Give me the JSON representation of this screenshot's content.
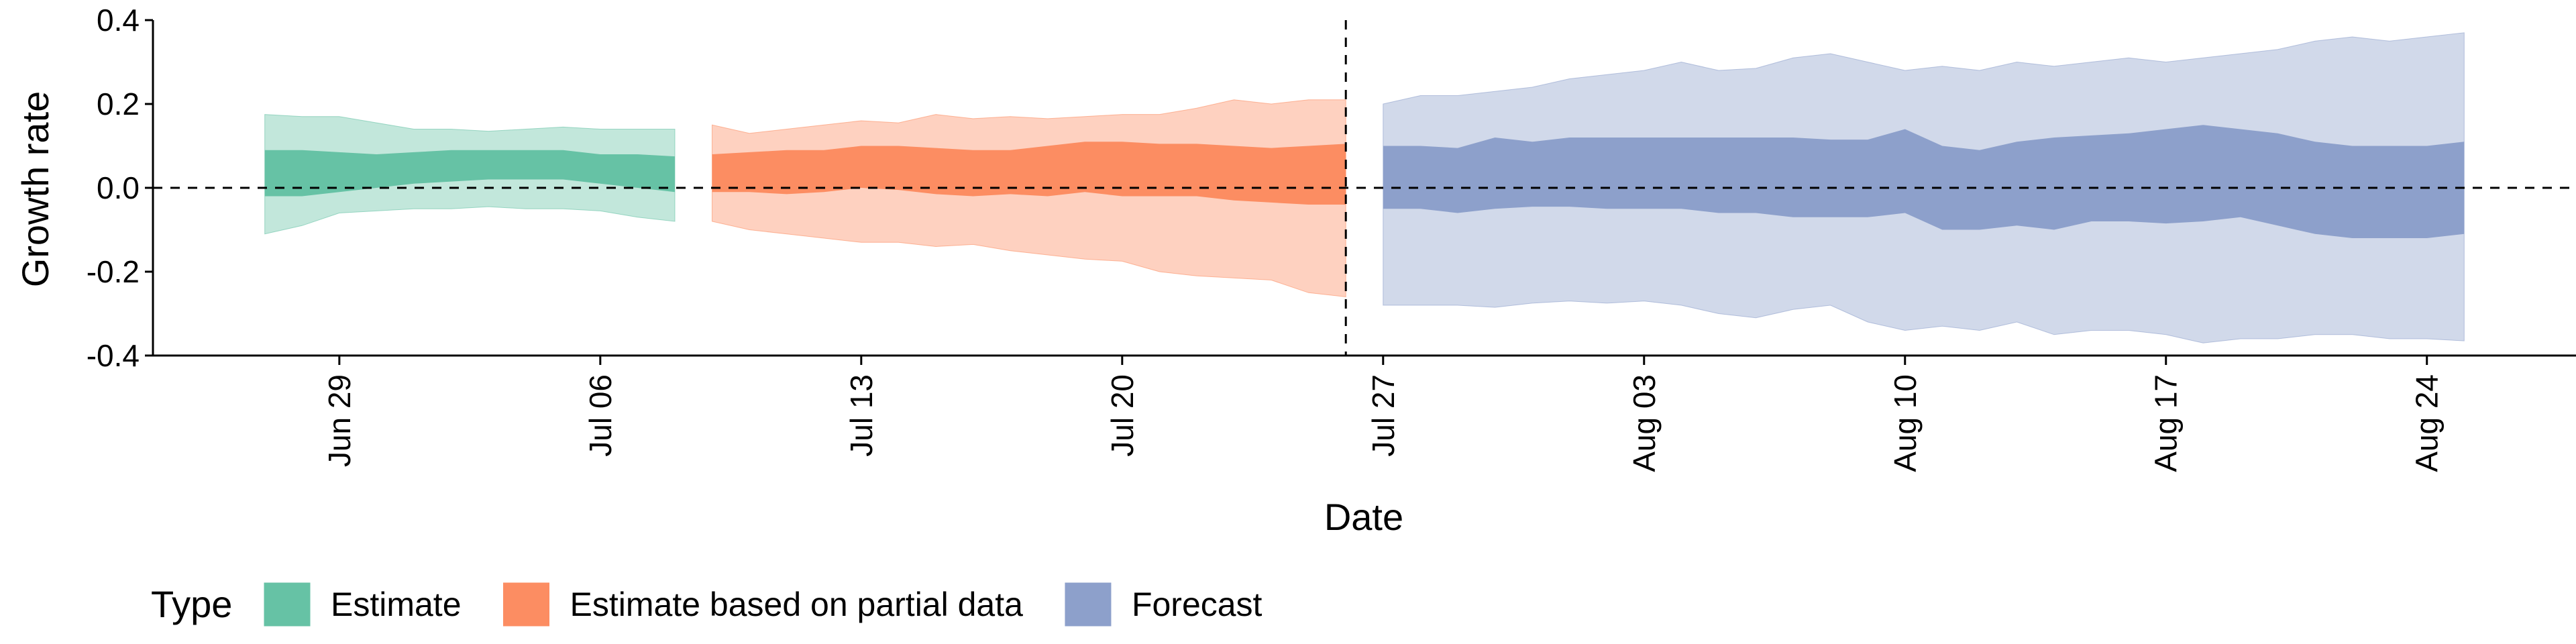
{
  "chart_data": {
    "type": "area",
    "xlabel": "Date",
    "ylabel": "Growth rate",
    "ylim": [
      -0.4,
      0.4
    ],
    "y_ticks": [
      {
        "value": -0.4,
        "label": "-0.4"
      },
      {
        "value": -0.2,
        "label": "-0.2"
      },
      {
        "value": 0.0,
        "label": "0.0"
      },
      {
        "value": 0.2,
        "label": "0.2"
      },
      {
        "value": 0.4,
        "label": "0.4"
      }
    ],
    "x_ticks": [
      {
        "date": "2020-06-29",
        "label": "Jun 29"
      },
      {
        "date": "2020-07-06",
        "label": "Jul 06"
      },
      {
        "date": "2020-07-13",
        "label": "Jul 13"
      },
      {
        "date": "2020-07-20",
        "label": "Jul 20"
      },
      {
        "date": "2020-07-27",
        "label": "Jul 27"
      },
      {
        "date": "2020-08-03",
        "label": "Aug 03"
      },
      {
        "date": "2020-08-10",
        "label": "Aug 10"
      },
      {
        "date": "2020-08-17",
        "label": "Aug 17"
      },
      {
        "date": "2020-08-24",
        "label": "Aug 24"
      }
    ],
    "xlim": [
      "2020-06-24",
      "2020-08-28"
    ],
    "reference_lines": {
      "horizontal_y": 0.0,
      "vertical_date": "2020-07-26"
    },
    "grid": false,
    "legend": {
      "position": "bottom",
      "title": "Type",
      "entries": [
        {
          "label": "Estimate",
          "color": "#66c2a5"
        },
        {
          "label": "Estimate based on partial data",
          "color": "#fc8d62"
        },
        {
          "label": "Forecast",
          "color": "#8da0cb"
        }
      ]
    },
    "series": [
      {
        "type": "Estimate",
        "color": "#66c2a5",
        "dates": [
          "2020-06-27",
          "2020-06-28",
          "2020-06-29",
          "2020-06-30",
          "2020-07-01",
          "2020-07-02",
          "2020-07-03",
          "2020-07-04",
          "2020-07-05",
          "2020-07-06",
          "2020-07-07",
          "2020-07-08"
        ],
        "lower_90": [
          -0.11,
          -0.09,
          -0.06,
          -0.055,
          -0.05,
          -0.05,
          -0.045,
          -0.05,
          -0.05,
          -0.055,
          -0.07,
          -0.08
        ],
        "lower_50": [
          -0.02,
          -0.02,
          -0.01,
          0.0,
          0.01,
          0.015,
          0.02,
          0.02,
          0.02,
          0.01,
          0.0,
          -0.01
        ],
        "upper_50": [
          0.09,
          0.09,
          0.085,
          0.08,
          0.085,
          0.09,
          0.09,
          0.09,
          0.09,
          0.08,
          0.08,
          0.075
        ],
        "upper_90": [
          0.175,
          0.17,
          0.17,
          0.155,
          0.14,
          0.14,
          0.135,
          0.14,
          0.145,
          0.14,
          0.14,
          0.14
        ]
      },
      {
        "type": "Estimate based on partial data",
        "color": "#fc8d62",
        "dates": [
          "2020-07-09",
          "2020-07-10",
          "2020-07-11",
          "2020-07-12",
          "2020-07-13",
          "2020-07-14",
          "2020-07-15",
          "2020-07-16",
          "2020-07-17",
          "2020-07-18",
          "2020-07-19",
          "2020-07-20",
          "2020-07-21",
          "2020-07-22",
          "2020-07-23",
          "2020-07-24",
          "2020-07-25",
          "2020-07-26"
        ],
        "lower_90": [
          -0.08,
          -0.1,
          -0.11,
          -0.12,
          -0.13,
          -0.13,
          -0.14,
          -0.135,
          -0.15,
          -0.16,
          -0.17,
          -0.175,
          -0.2,
          -0.21,
          -0.215,
          -0.22,
          -0.25,
          -0.26
        ],
        "lower_50": [
          -0.01,
          -0.01,
          -0.015,
          -0.01,
          0.0,
          -0.005,
          -0.015,
          -0.02,
          -0.015,
          -0.02,
          -0.01,
          -0.02,
          -0.02,
          -0.02,
          -0.03,
          -0.035,
          -0.04,
          -0.04
        ],
        "upper_50": [
          0.08,
          0.085,
          0.09,
          0.09,
          0.1,
          0.1,
          0.095,
          0.09,
          0.09,
          0.1,
          0.11,
          0.11,
          0.105,
          0.105,
          0.1,
          0.095,
          0.1,
          0.105
        ],
        "upper_90": [
          0.15,
          0.13,
          0.14,
          0.15,
          0.16,
          0.155,
          0.175,
          0.165,
          0.17,
          0.165,
          0.17,
          0.175,
          0.175,
          0.19,
          0.21,
          0.2,
          0.21,
          0.21
        ]
      },
      {
        "type": "Forecast",
        "color": "#8da0cb",
        "dates": [
          "2020-07-27",
          "2020-07-28",
          "2020-07-29",
          "2020-07-30",
          "2020-07-31",
          "2020-08-01",
          "2020-08-02",
          "2020-08-03",
          "2020-08-04",
          "2020-08-05",
          "2020-08-06",
          "2020-08-07",
          "2020-08-08",
          "2020-08-09",
          "2020-08-10",
          "2020-08-11",
          "2020-08-12",
          "2020-08-13",
          "2020-08-14",
          "2020-08-15",
          "2020-08-16",
          "2020-08-17",
          "2020-08-18",
          "2020-08-19",
          "2020-08-20",
          "2020-08-21",
          "2020-08-22",
          "2020-08-23",
          "2020-08-24",
          "2020-08-25"
        ],
        "lower_90": [
          -0.28,
          -0.28,
          -0.28,
          -0.285,
          -0.275,
          -0.27,
          -0.275,
          -0.27,
          -0.28,
          -0.3,
          -0.31,
          -0.29,
          -0.28,
          -0.32,
          -0.34,
          -0.33,
          -0.34,
          -0.32,
          -0.35,
          -0.34,
          -0.34,
          -0.35,
          -0.37,
          -0.36,
          -0.36,
          -0.35,
          -0.35,
          -0.36,
          -0.36,
          -0.365
        ],
        "lower_50": [
          -0.05,
          -0.05,
          -0.06,
          -0.05,
          -0.045,
          -0.045,
          -0.05,
          -0.05,
          -0.05,
          -0.06,
          -0.06,
          -0.07,
          -0.07,
          -0.07,
          -0.06,
          -0.1,
          -0.1,
          -0.09,
          -0.1,
          -0.08,
          -0.08,
          -0.085,
          -0.08,
          -0.07,
          -0.09,
          -0.11,
          -0.12,
          -0.12,
          -0.12,
          -0.11
        ],
        "upper_50": [
          0.1,
          0.1,
          0.095,
          0.12,
          0.11,
          0.12,
          0.12,
          0.12,
          0.12,
          0.12,
          0.12,
          0.12,
          0.115,
          0.115,
          0.14,
          0.1,
          0.09,
          0.11,
          0.12,
          0.125,
          0.13,
          0.14,
          0.15,
          0.14,
          0.13,
          0.11,
          0.1,
          0.1,
          0.1,
          0.11
        ],
        "upper_90": [
          0.2,
          0.22,
          0.22,
          0.23,
          0.24,
          0.26,
          0.27,
          0.28,
          0.3,
          0.28,
          0.285,
          0.31,
          0.32,
          0.3,
          0.28,
          0.29,
          0.28,
          0.3,
          0.29,
          0.3,
          0.31,
          0.3,
          0.31,
          0.32,
          0.33,
          0.35,
          0.36,
          0.35,
          0.36,
          0.37
        ]
      }
    ]
  }
}
